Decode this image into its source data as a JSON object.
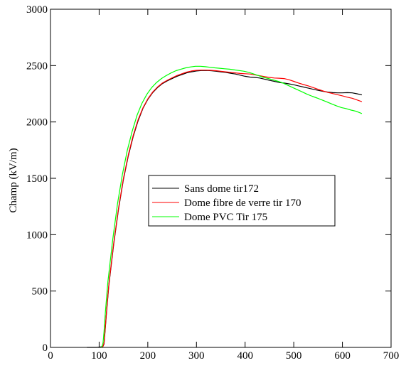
{
  "chart_data": {
    "type": "line",
    "title": "",
    "xlabel": "",
    "ylabel": "Champ (kV/m)",
    "xlim": [
      0,
      700
    ],
    "ylim": [
      0,
      3000
    ],
    "xticks": [
      0,
      100,
      200,
      300,
      400,
      500,
      600,
      700
    ],
    "yticks": [
      0,
      500,
      1000,
      1500,
      2000,
      2500,
      3000
    ],
    "grid": false,
    "legend_position": "center",
    "series": [
      {
        "name": "Sans dome tir172",
        "color": "#000000",
        "x": [
          75,
          95,
          105,
          108,
          110,
          112,
          115,
          120,
          130,
          140,
          150,
          160,
          170,
          180,
          190,
          200,
          210,
          220,
          230,
          240,
          250,
          260,
          270,
          280,
          290,
          300,
          310,
          320,
          330,
          340,
          350,
          360,
          370,
          380,
          390,
          400,
          410,
          420,
          430,
          440,
          450,
          460,
          470,
          480,
          490,
          500,
          510,
          520,
          530,
          540,
          550,
          560,
          570,
          580,
          590,
          600,
          610,
          620,
          630,
          640
        ],
        "y": [
          0,
          0,
          5,
          10,
          30,
          130,
          300,
          550,
          920,
          1230,
          1490,
          1700,
          1870,
          2010,
          2120,
          2200,
          2260,
          2305,
          2340,
          2365,
          2385,
          2405,
          2420,
          2435,
          2445,
          2452,
          2456,
          2457,
          2455,
          2450,
          2445,
          2440,
          2432,
          2425,
          2415,
          2405,
          2398,
          2395,
          2390,
          2380,
          2370,
          2360,
          2350,
          2345,
          2338,
          2330,
          2320,
          2310,
          2300,
          2290,
          2280,
          2272,
          2265,
          2260,
          2258,
          2258,
          2260,
          2258,
          2250,
          2240
        ]
      },
      {
        "name": "Dome fibre de verre tir 170",
        "color": "#ff0000",
        "x": [
          105,
          108,
          110,
          112,
          115,
          120,
          130,
          140,
          150,
          160,
          170,
          180,
          190,
          200,
          210,
          220,
          230,
          240,
          250,
          260,
          270,
          280,
          290,
          300,
          310,
          320,
          330,
          340,
          350,
          360,
          370,
          380,
          390,
          400,
          410,
          420,
          430,
          440,
          450,
          460,
          470,
          480,
          490,
          500,
          510,
          520,
          530,
          540,
          550,
          560,
          570,
          580,
          590,
          600,
          610,
          620,
          630,
          640
        ],
        "y": [
          0,
          10,
          40,
          140,
          310,
          560,
          930,
          1240,
          1500,
          1710,
          1880,
          2020,
          2125,
          2205,
          2265,
          2310,
          2345,
          2370,
          2392,
          2412,
          2428,
          2442,
          2452,
          2458,
          2460,
          2460,
          2458,
          2455,
          2450,
          2445,
          2440,
          2435,
          2430,
          2428,
          2425,
          2418,
          2410,
          2402,
          2395,
          2390,
          2388,
          2385,
          2375,
          2360,
          2345,
          2332,
          2320,
          2305,
          2290,
          2275,
          2262,
          2252,
          2242,
          2232,
          2220,
          2210,
          2195,
          2180
        ]
      },
      {
        "name": "Dome PVC Tir 175",
        "color": "#00ff00",
        "x": [
          103,
          106,
          108,
          110,
          113,
          118,
          128,
          138,
          148,
          158,
          168,
          178,
          188,
          198,
          208,
          218,
          228,
          238,
          248,
          258,
          268,
          278,
          288,
          298,
          308,
          318,
          328,
          338,
          348,
          358,
          368,
          378,
          388,
          398,
          408,
          418,
          428,
          438,
          448,
          458,
          468,
          478,
          488,
          498,
          508,
          518,
          528,
          538,
          548,
          558,
          568,
          578,
          588,
          598,
          608,
          618,
          628,
          640
        ],
        "y": [
          0,
          10,
          40,
          140,
          320,
          580,
          960,
          1280,
          1540,
          1750,
          1920,
          2060,
          2165,
          2245,
          2305,
          2350,
          2385,
          2412,
          2435,
          2455,
          2468,
          2480,
          2488,
          2494,
          2494,
          2490,
          2485,
          2480,
          2476,
          2472,
          2468,
          2462,
          2456,
          2450,
          2440,
          2425,
          2410,
          2395,
          2385,
          2372,
          2360,
          2345,
          2325,
          2305,
          2285,
          2265,
          2245,
          2228,
          2212,
          2195,
          2178,
          2160,
          2142,
          2128,
          2118,
          2105,
          2095,
          2075
        ]
      }
    ]
  }
}
